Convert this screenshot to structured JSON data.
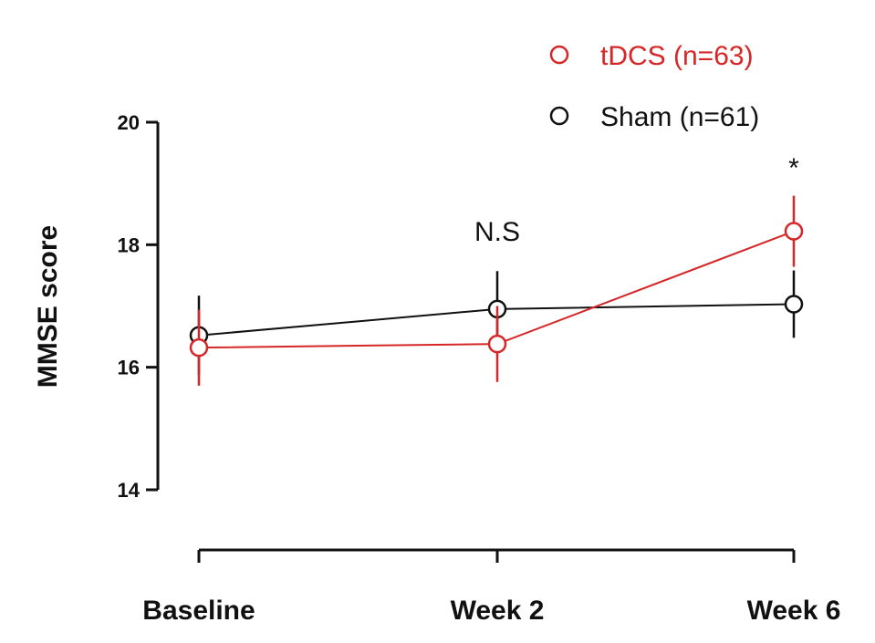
{
  "chart_data": {
    "type": "line",
    "title": "",
    "xlabel": "",
    "ylabel": "MMSE score",
    "categories": [
      "Baseline",
      "Week 2",
      "Week 6"
    ],
    "ylim": [
      14,
      20
    ],
    "yticks": [
      14,
      16,
      18,
      20
    ],
    "series": [
      {
        "name": "tDCS (n=63)",
        "color": "#d62728",
        "values": [
          16.32,
          16.38,
          18.22
        ],
        "error": [
          0.62,
          0.62,
          0.58
        ]
      },
      {
        "name": "Sham (n=61)",
        "color": "#111111",
        "values": [
          16.52,
          16.95,
          17.03
        ],
        "error": [
          0.65,
          0.62,
          0.55
        ]
      }
    ],
    "annotations": [
      {
        "category": "Week 2",
        "text": "N.S"
      },
      {
        "category": "Week 6",
        "text": "*"
      }
    ]
  }
}
